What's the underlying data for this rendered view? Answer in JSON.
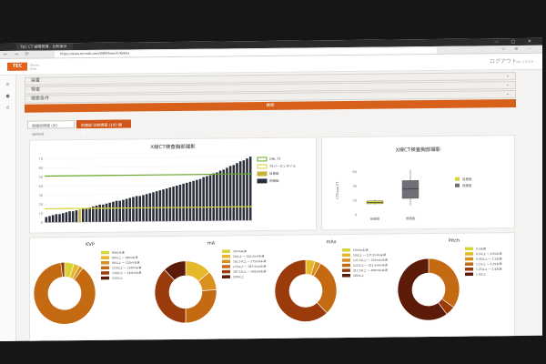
{
  "browser": {
    "tab_title": "TEC CT 被曝管理 - 比較表示",
    "url": "https://www.mrcadi.com/SSM/Search/Kekka",
    "window_controls": "— ▢ ✕",
    "nav_icons": "← → ⟳",
    "toolbar_icons": "☆ ≡ ⋯"
  },
  "app": {
    "logo_text": "TEC",
    "logo_sub": "Tohoku Data",
    "logout_label": "ログアウト",
    "version": "ver 2.0.0.0"
  },
  "filters": [
    {
      "label": "装置"
    },
    {
      "label": "検査"
    },
    {
      "label": "検索条件"
    }
  ],
  "search_button": "検索",
  "tabs": [
    {
      "label": "自施設情報 (90 series)"
    },
    {
      "label": "他施設 比較情報 (100 施設)"
    }
  ],
  "main_chart": {
    "title": "X線CT検査胸部撮影",
    "legend": [
      "DRL 75",
      "75パーセンタイル",
      "自施設",
      "他施設"
    ],
    "y_ticks": [
      0,
      10,
      20,
      30,
      40,
      50,
      60,
      70
    ]
  },
  "box_chart": {
    "title": "X線CT検査胸部撮影",
    "ylabel": "CTDIvol CT",
    "legend": [
      "自施設",
      "他施設"
    ],
    "categories": [
      "自施設",
      "他施設"
    ],
    "y_ticks": [
      0,
      20,
      40,
      60
    ]
  },
  "donuts": [
    {
      "title": "KVP",
      "legend": [
        "80kV未満",
        "80以上 ～ 90kV未満",
        "90以上 ～ 110kV未満",
        "110以上 ～ 130kV未満",
        "130以上 ～ 140kV未満",
        "140以上"
      ]
    },
    {
      "title": "mA",
      "legend": [
        "50mA未満",
        "50以上 ～ 162.5mA未満",
        "162.5以上 ～ 275mA未満",
        "275以上 ～ 387.5mA未満",
        "387.5以上 ～ 500mA未満",
        "500以上"
      ]
    },
    {
      "title": "mAs",
      "legend": [
        "50mAs未満",
        "50以上 ～ 137.5mAs未満",
        "137.5以上 ～ 225mAs未満",
        "225以上 ～ 312.5mAs未満",
        "312.5以上 ～ 400mAs未満",
        "400以上"
      ]
    },
    {
      "title": "Pitch",
      "legend": [
        "0.5未満",
        "0.5以上 ～ 0.95未満",
        "0.95以上 ～ 1.1未満",
        "1.1以上 ～ 1.25未満",
        "1.25以上 ～ 1.4未満",
        "1.4以上"
      ]
    }
  ],
  "colors": {
    "accent": "#d7611a",
    "ring": [
      "#d8d53a",
      "#e6b92a",
      "#d9901e",
      "#c46a12",
      "#9b3b0b",
      "#5c1a08"
    ],
    "bars": "#2a2d3a",
    "highlight_bar": "#c8b238",
    "drl_line": "#6aa72a",
    "pct_line": "#d8d53a"
  },
  "chart_data": [
    {
      "type": "bar",
      "title": "X線CT検査胸部撮影",
      "series": [
        {
          "name": "他施設",
          "values": [
            6,
            7,
            8,
            9,
            9,
            10,
            11,
            12,
            12,
            13,
            14,
            15,
            15,
            16,
            17,
            18,
            19,
            19,
            20,
            21,
            22,
            23,
            23,
            24,
            25,
            26,
            27,
            28,
            28,
            29,
            30,
            31,
            32,
            33,
            34,
            35,
            36,
            37,
            38,
            39,
            40,
            41,
            42,
            43,
            44,
            45,
            46,
            48,
            49,
            50,
            52,
            53,
            55,
            56,
            58,
            60,
            61,
            63,
            65,
            66,
            68,
            70
          ]
        },
        {
          "name": "DRL 75",
          "values": [
            51
          ]
        },
        {
          "name": "75パーセンタイル",
          "values": [
            15
          ]
        }
      ],
      "highlight_index": 10,
      "ylim": [
        0,
        70
      ]
    },
    {
      "type": "box",
      "title": "X線CT検査胸部撮影",
      "ylabel": "CTDIvol CT",
      "categories": [
        "自施設",
        "他施設"
      ],
      "series": [
        {
          "name": "自施設",
          "min": 14,
          "q1": 15,
          "median": 17,
          "q3": 19,
          "max": 21
        },
        {
          "name": "他施設",
          "min": 12,
          "q1": 22,
          "median": 35,
          "q3": 47,
          "max": 62
        }
      ],
      "ylim": [
        0,
        70
      ]
    },
    {
      "type": "pie",
      "title": "KVP",
      "values": [
        5,
        3,
        2,
        88,
        2,
        0
      ]
    },
    {
      "type": "pie",
      "title": "mA",
      "values": [
        0,
        14,
        10,
        26,
        38,
        12
      ]
    },
    {
      "type": "pie",
      "title": "mAs",
      "values": [
        0,
        5,
        3,
        30,
        62,
        0
      ]
    },
    {
      "type": "pie",
      "title": "Pitch",
      "values": [
        0,
        0,
        0,
        35,
        5,
        60
      ]
    }
  ]
}
